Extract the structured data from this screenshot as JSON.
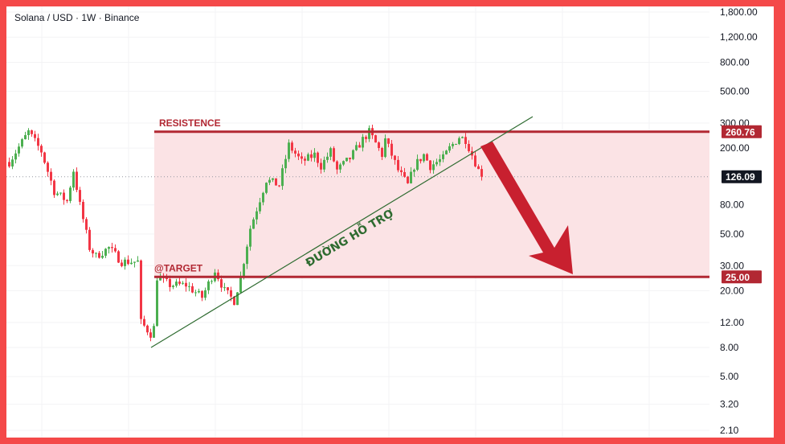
{
  "header": {
    "title": "Solana / USD · 1W · Binance"
  },
  "chart_data": {
    "type": "candlestick",
    "title": "Solana / USD · 1W · Binance",
    "y_scale": "log",
    "ylim": [
      2.0,
      2000
    ],
    "y_ticks": [
      "1,800.00",
      "1,200.00",
      "800.00",
      "500.00",
      "300.00",
      "200.00",
      "80.00",
      "50.00",
      "30.00",
      "20.00",
      "12.00",
      "8.00",
      "5.00",
      "3.20",
      "2.10"
    ],
    "y_tick_values": [
      1800,
      1200,
      800,
      500,
      300,
      200,
      80,
      50,
      30,
      20,
      12,
      8,
      5,
      3.2,
      2.1
    ],
    "grid": true,
    "colors": {
      "up": "#4caf50",
      "down": "#f23645",
      "resistance": "#b22833",
      "zone": "#fbe3e5",
      "support_line": "#2e6b30",
      "arrow": "#c8202f",
      "last_price_tag": "#131722"
    },
    "weekly_close_approx": [
      [
        0,
        160
      ],
      [
        6,
        260
      ],
      [
        10,
        190
      ],
      [
        14,
        100
      ],
      [
        18,
        85
      ],
      [
        20,
        140
      ],
      [
        22,
        80
      ],
      [
        25,
        40
      ],
      [
        27,
        35
      ],
      [
        31,
        40
      ],
      [
        35,
        32
      ],
      [
        40,
        32
      ],
      [
        41,
        12
      ],
      [
        44,
        10
      ],
      [
        45,
        11
      ],
      [
        46,
        25
      ],
      [
        50,
        22
      ],
      [
        55,
        22
      ],
      [
        60,
        18
      ],
      [
        64,
        28
      ],
      [
        67,
        20
      ],
      [
        70,
        17
      ],
      [
        72,
        25
      ],
      [
        75,
        55
      ],
      [
        77,
        75
      ],
      [
        80,
        120
      ],
      [
        84,
        110
      ],
      [
        87,
        210
      ],
      [
        91,
        160
      ],
      [
        95,
        180
      ],
      [
        97,
        150
      ],
      [
        100,
        190
      ],
      [
        102,
        140
      ],
      [
        106,
        170
      ],
      [
        110,
        230
      ],
      [
        112,
        260
      ],
      [
        116,
        180
      ],
      [
        117,
        230
      ],
      [
        121,
        140
      ],
      [
        124,
        110
      ],
      [
        126,
        150
      ],
      [
        129,
        180
      ],
      [
        131,
        150
      ],
      [
        135,
        170
      ],
      [
        137,
        200
      ],
      [
        140,
        240
      ],
      [
        142,
        230
      ],
      [
        144,
        180
      ],
      [
        145,
        160
      ],
      [
        146,
        140
      ],
      [
        147,
        126.09
      ]
    ],
    "annotations": {
      "resistance": {
        "label": "RESISTENCE",
        "price": 260.76,
        "price_tag": "260.76"
      },
      "target": {
        "label": "@TARGET",
        "price": 25.0,
        "price_tag": "25.00"
      },
      "support_trendline": {
        "label": "ĐƯỜNG HỖ TRỢ",
        "from_price": 8.0,
        "to_price": 320
      },
      "arrow": {
        "direction": "down",
        "from_price": 200,
        "to_price": 25
      }
    },
    "last_price": {
      "value": 126.09,
      "tag": "126.09"
    }
  }
}
